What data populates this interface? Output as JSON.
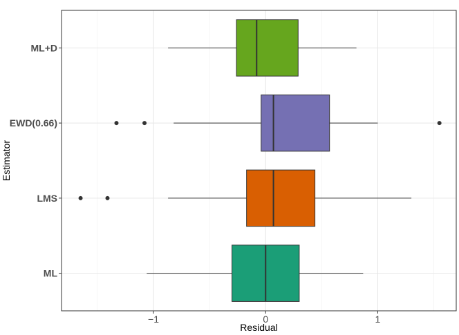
{
  "chart_data": {
    "type": "boxplot",
    "orientation": "horizontal",
    "title": "",
    "xlabel": "Residual",
    "ylabel": "Estimator",
    "xlim": [
      -1.82,
      1.7
    ],
    "xticks": [
      -1,
      0,
      1
    ],
    "xtick_labels": [
      "−1",
      "0",
      "1"
    ],
    "grid": true,
    "legend": "none",
    "categories": [
      "ML",
      "LMS",
      "EWD(0.66)",
      "ML+D"
    ],
    "boxes": [
      {
        "category": "ML",
        "whisker_low": -1.06,
        "q1": -0.3,
        "median": 0.0,
        "q3": 0.3,
        "whisker_high": 0.87,
        "outliers": [],
        "color": "#1b9e77"
      },
      {
        "category": "LMS",
        "whisker_low": -0.87,
        "q1": -0.17,
        "median": 0.07,
        "q3": 0.44,
        "whisker_high": 1.3,
        "outliers": [
          -1.65,
          -1.41
        ],
        "color": "#d95f02"
      },
      {
        "category": "EWD(0.66)",
        "whisker_low": -0.82,
        "q1": -0.04,
        "median": 0.07,
        "q3": 0.57,
        "whisker_high": 1.0,
        "outliers": [
          -1.33,
          -1.08,
          1.55
        ],
        "color": "#7570b3"
      },
      {
        "category": "ML+D",
        "whisker_low": -0.87,
        "q1": -0.26,
        "median": -0.08,
        "q3": 0.29,
        "whisker_high": 0.81,
        "outliers": [],
        "color": "#66a61e"
      }
    ]
  }
}
